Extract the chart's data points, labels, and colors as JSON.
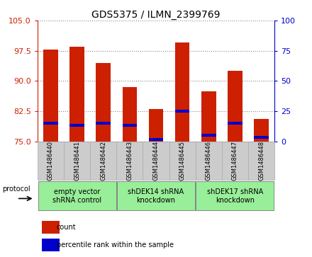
{
  "title": "GDS5375 / ILMN_2399769",
  "samples": [
    "GSM1486440",
    "GSM1486441",
    "GSM1486442",
    "GSM1486443",
    "GSM1486444",
    "GSM1486445",
    "GSM1486446",
    "GSM1486447",
    "GSM1486448"
  ],
  "count_values": [
    97.8,
    98.5,
    94.5,
    88.5,
    83.0,
    99.5,
    87.5,
    92.5,
    80.5
  ],
  "percentile_values": [
    79.5,
    79.0,
    79.5,
    79.0,
    75.5,
    82.5,
    76.5,
    79.5,
    76.0
  ],
  "bar_bottom": 75.0,
  "ylim_left": [
    75,
    105
  ],
  "ylim_right": [
    0,
    100
  ],
  "yticks_left": [
    75,
    82.5,
    90,
    97.5,
    105
  ],
  "yticks_right": [
    0,
    25,
    50,
    75,
    100
  ],
  "groups": [
    {
      "label": "empty vector\nshRNA control",
      "start": 0,
      "end": 3
    },
    {
      "label": "shDEK14 shRNA\nknockdown",
      "start": 3,
      "end": 6
    },
    {
      "label": "shDEK17 shRNA\nknockdown",
      "start": 6,
      "end": 9
    }
  ],
  "group_color": "#99ee99",
  "count_color": "#cc2000",
  "percentile_color": "#0000cc",
  "bar_width": 0.55,
  "grid_color": "#888888",
  "background_color": "#ffffff",
  "tick_bg_color": "#cccccc",
  "legend_count": "count",
  "legend_percentile": "percentile rank within the sample",
  "protocol_label": "protocol",
  "left_axis_color": "#cc2000",
  "right_axis_color": "#0000cc",
  "title_fontsize": 10,
  "bar_label_fontsize": 6,
  "group_label_fontsize": 7,
  "legend_fontsize": 7
}
